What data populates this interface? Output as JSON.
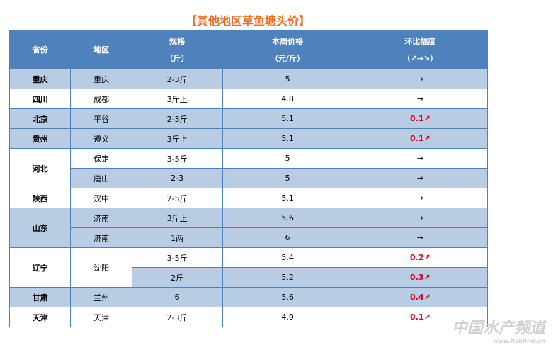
{
  "title": "【其他地区草鱼塘头价】",
  "table": {
    "header": [
      [
        "省份"
      ],
      [
        "地区"
      ],
      [
        "规格",
        "（斤）"
      ],
      [
        "本周价格",
        "（元/斤）"
      ],
      [
        "环比幅度",
        "（↗→↘）"
      ]
    ],
    "provinces": [
      {
        "name": "重庆",
        "regions": [
          {
            "name": "重庆",
            "items": [
              {
                "spec": "2-3斤",
                "price": 5,
                "change": "→"
              }
            ]
          }
        ]
      },
      {
        "name": "四川",
        "regions": [
          {
            "name": "成都",
            "items": [
              {
                "spec": "3斤上",
                "price": 4.8,
                "change": "→"
              }
            ]
          }
        ]
      },
      {
        "name": "北京",
        "regions": [
          {
            "name": "平谷",
            "items": [
              {
                "spec": "2-3斤",
                "price": 5.1,
                "change": "0.1↗"
              }
            ]
          }
        ]
      },
      {
        "name": "贵州",
        "regions": [
          {
            "name": "遵义",
            "items": [
              {
                "spec": "3斤上",
                "price": 5.1,
                "change": "0.1↗"
              }
            ]
          }
        ]
      },
      {
        "name": "河北",
        "regions": [
          {
            "name": "保定",
            "items": [
              {
                "spec": "3-5斤",
                "price": 5,
                "change": "→"
              }
            ]
          },
          {
            "name": "唐山",
            "items": [
              {
                "spec": "2-3",
                "price": 5,
                "change": "→"
              }
            ]
          }
        ]
      },
      {
        "name": "陕西",
        "regions": [
          {
            "name": "汉中",
            "items": [
              {
                "spec": "2-5斤",
                "price": 5.1,
                "change": "→"
              }
            ]
          }
        ]
      },
      {
        "name": "山东",
        "regions": [
          {
            "name": "济南",
            "items": [
              {
                "spec": "3斤上",
                "price": 5.6,
                "change": "→"
              }
            ]
          },
          {
            "name": "济南",
            "items": [
              {
                "spec": "1两",
                "price": 6,
                "change": "→"
              }
            ]
          }
        ]
      },
      {
        "name": "辽宁",
        "regions": [
          {
            "name": "沈阳",
            "items": [
              {
                "spec": "3-5斤",
                "price": 5.4,
                "change": "0.2↗"
              },
              {
                "spec": "2斤",
                "price": 5.2,
                "change": "0.3↗"
              }
            ]
          }
        ]
      },
      {
        "name": "甘肃",
        "regions": [
          {
            "name": "兰州",
            "items": [
              {
                "spec": "6",
                "price": 5.6,
                "change": "0.4↗"
              }
            ]
          }
        ]
      },
      {
        "name": "天津",
        "regions": [
          {
            "name": "天津",
            "items": [
              {
                "spec": "2-3斤",
                "price": 4.9,
                "change": "0.1↗"
              }
            ]
          }
        ]
      }
    ]
  },
  "watermark": {
    "name": "中国水产频道",
    "url": "www.fishfirst.cn"
  }
}
